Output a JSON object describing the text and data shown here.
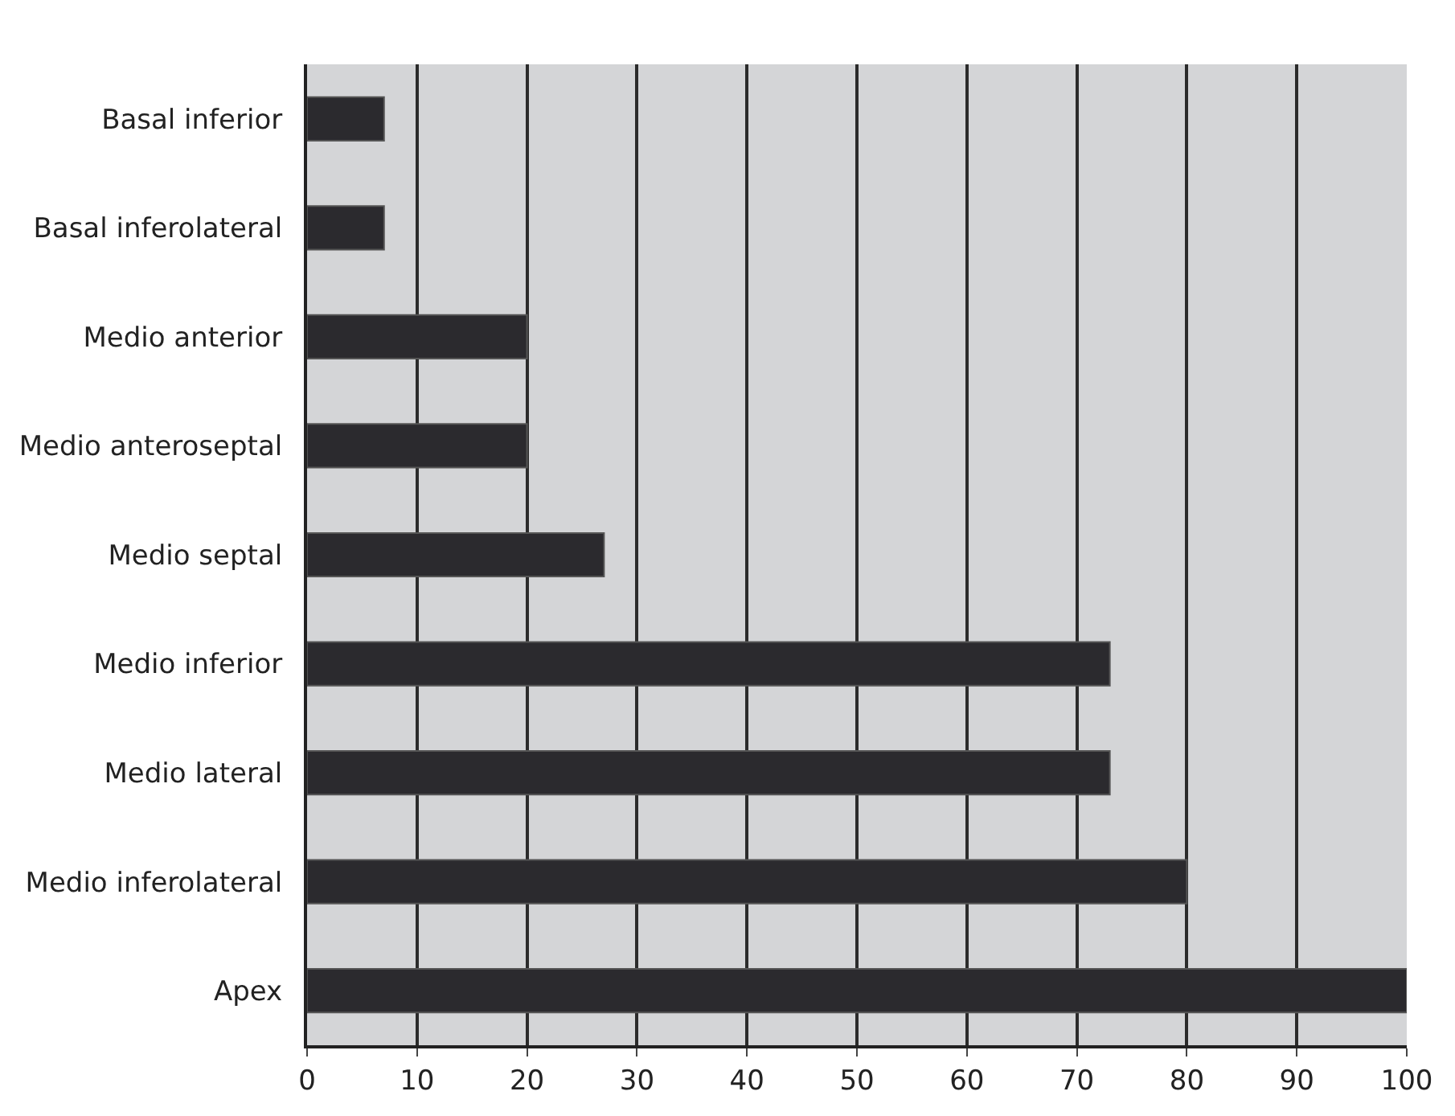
{
  "chart_data": {
    "type": "bar",
    "orientation": "horizontal",
    "categories": [
      "Basal inferior",
      "Basal inferolateral",
      "Medio anterior",
      "Medio anteroseptal",
      "Medio septal",
      "Medio inferior",
      "Medio lateral",
      "Medio inferolateral",
      "Apex"
    ],
    "values": [
      7,
      7,
      20,
      20,
      27,
      73,
      73,
      80,
      100
    ],
    "color": "#2b2a2e",
    "xlim": [
      0,
      100
    ],
    "xticks": [
      0,
      10,
      20,
      30,
      40,
      50,
      60,
      70,
      80,
      90,
      100
    ],
    "grid": "x"
  }
}
